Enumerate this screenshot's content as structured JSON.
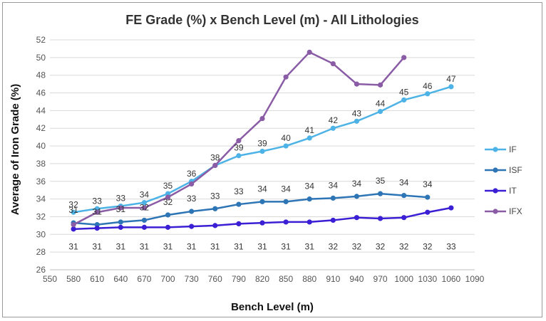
{
  "chart_data": {
    "type": "line",
    "title": "FE Grade (%) x Bench Level (m) - All Lithologies",
    "xlabel": "Bench Level (m)",
    "ylabel": "Average of  Iron Grade (%)",
    "xlim": [
      550,
      1090
    ],
    "ylim": [
      26,
      52
    ],
    "x_ticks": [
      550,
      580,
      610,
      640,
      670,
      700,
      730,
      760,
      790,
      820,
      850,
      880,
      910,
      940,
      970,
      1000,
      1030,
      1060,
      1090
    ],
    "x_tick_labels": [
      "550",
      "580",
      "610",
      "640",
      "670",
      "700",
      "730",
      "760",
      "790",
      "820",
      "850",
      "880",
      "910",
      "940",
      "970",
      "1000",
      "1030",
      "1060",
      "1090"
    ],
    "y_ticks": [
      26,
      28,
      30,
      32,
      34,
      36,
      38,
      40,
      42,
      44,
      46,
      48,
      50,
      52
    ],
    "y_tick_labels": [
      "26",
      "28",
      "30",
      "32",
      "34",
      "36",
      "38",
      "40",
      "42",
      "44",
      "46",
      "48",
      "50",
      "52"
    ],
    "grid": true,
    "legend_position": "right",
    "series": [
      {
        "name": "IF",
        "color": "#4db3e6",
        "x": [
          580,
          610,
          640,
          670,
          700,
          730,
          760,
          790,
          820,
          850,
          880,
          910,
          940,
          970,
          1000,
          1030,
          1060
        ],
        "values": [
          32.5,
          32.9,
          33.2,
          33.6,
          34.6,
          36.0,
          37.8,
          38.9,
          39.4,
          40.0,
          40.9,
          42.0,
          42.8,
          43.9,
          45.2,
          45.9,
          46.7
        ],
        "labels": [
          "32",
          "33",
          "33",
          "34",
          "35",
          "36",
          "38",
          "39",
          "39",
          "40",
          "41",
          "42",
          "43",
          "44",
          "45",
          "46",
          "47"
        ]
      },
      {
        "name": "ISF",
        "color": "#2e75b6",
        "x": [
          580,
          610,
          640,
          670,
          700,
          730,
          760,
          790,
          820,
          850,
          880,
          910,
          940,
          970,
          1000,
          1030
        ],
        "values": [
          31.3,
          31.1,
          31.4,
          31.6,
          32.2,
          32.6,
          32.9,
          33.4,
          33.7,
          33.7,
          34.0,
          34.1,
          34.3,
          34.6,
          34.4,
          34.2
        ],
        "labels": [
          "31",
          "31",
          "31",
          "32",
          "32",
          "33",
          "33",
          "33",
          "34",
          "34",
          "34",
          "34",
          "34",
          "35",
          "34",
          "34"
        ]
      },
      {
        "name": "IT",
        "color": "#3a1fd4",
        "x": [
          580,
          610,
          640,
          670,
          700,
          730,
          760,
          790,
          820,
          850,
          880,
          910,
          940,
          970,
          1000,
          1030,
          1060
        ],
        "values": [
          30.6,
          30.7,
          30.8,
          30.8,
          30.8,
          30.9,
          31.0,
          31.2,
          31.3,
          31.4,
          31.4,
          31.6,
          31.9,
          31.8,
          31.9,
          32.5,
          33.0
        ],
        "labels": [
          "31",
          "31",
          "31",
          "31",
          "31",
          "31",
          "31",
          "31",
          "31",
          "31",
          "31",
          "32",
          "32",
          "32",
          "32",
          "32",
          "33"
        ]
      },
      {
        "name": "IFX",
        "color": "#8a5ca6",
        "x": [
          580,
          610,
          640,
          670,
          700,
          730,
          760,
          790,
          820,
          850,
          880,
          910,
          940,
          970,
          1000
        ],
        "values": [
          31.1,
          32.5,
          33.0,
          33.0,
          34.2,
          35.7,
          37.8,
          40.6,
          43.1,
          47.8,
          50.6,
          49.3,
          47.0,
          46.9,
          50.0
        ],
        "labels": []
      }
    ]
  }
}
